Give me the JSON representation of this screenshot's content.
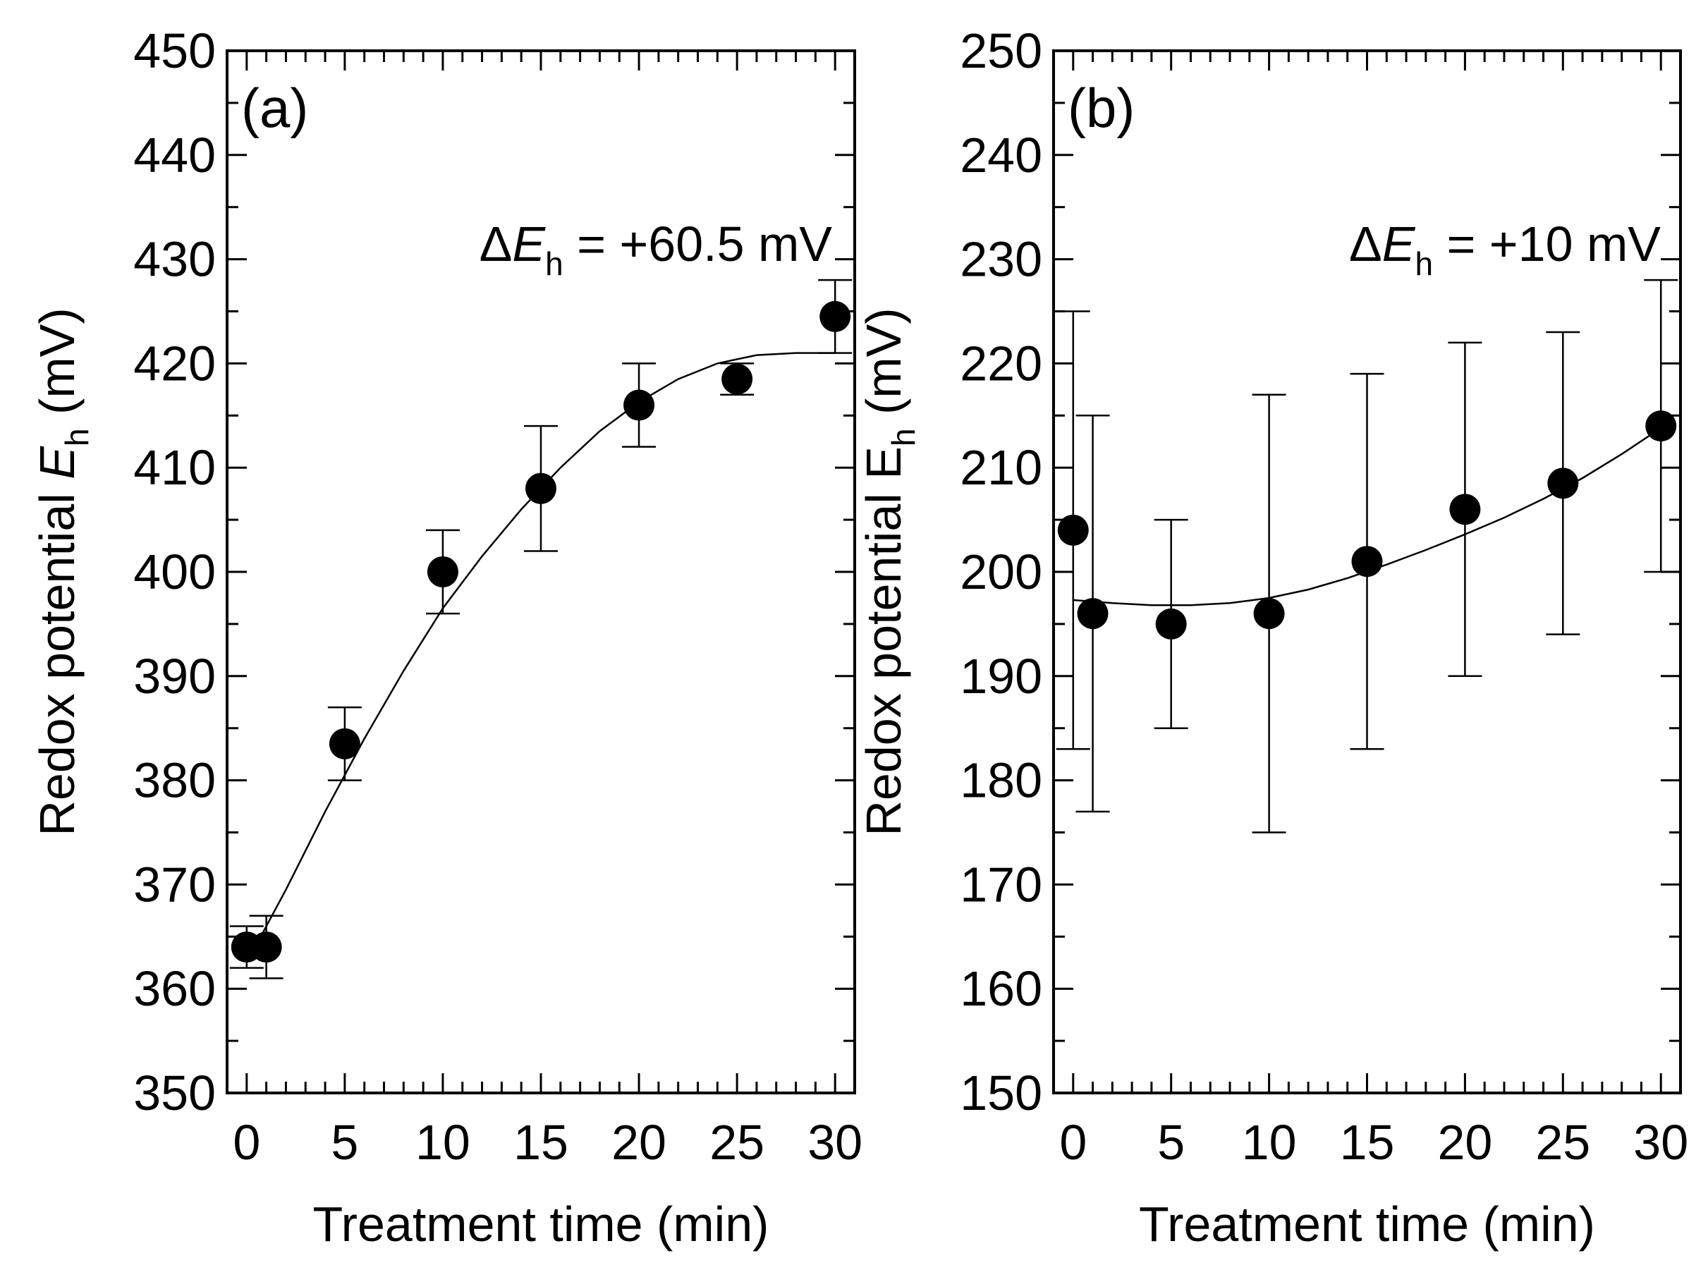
{
  "chart_data": [
    {
      "type": "scatter",
      "panel_label": "(a)",
      "xlabel": "Treatment time (min)",
      "ylabel_main": "Redox potential ",
      "ylabel_var": "E",
      "ylabel_sub": "h",
      "ylabel_unit": " (mV)",
      "ylabel_var_italic": true,
      "xlim": [
        -1,
        31
      ],
      "ylim": [
        350,
        450
      ],
      "xticks": [
        0,
        5,
        10,
        15,
        20,
        25,
        30
      ],
      "xtick_labels": [
        "0",
        "5",
        "10",
        "15",
        "20",
        "25",
        "30"
      ],
      "yticks": [
        350,
        360,
        370,
        380,
        390,
        400,
        410,
        420,
        430,
        440,
        450
      ],
      "ytick_labels": [
        "350",
        "360",
        "370",
        "380",
        "390",
        "400",
        "410",
        "420",
        "430",
        "440",
        "450"
      ],
      "annotation": {
        "delta": "Δ",
        "var": "E",
        "sub": "h",
        "value": " = +60.5 mV"
      },
      "x": [
        0,
        1,
        5,
        10,
        15,
        20,
        25,
        30
      ],
      "y": [
        364,
        364,
        383.5,
        400,
        408,
        416,
        418.5,
        424.5
      ],
      "err_low": [
        362,
        361,
        380,
        396,
        402,
        412,
        417,
        421
      ],
      "err_high": [
        366,
        367,
        387,
        404,
        414,
        420,
        420,
        428
      ],
      "fit": {
        "x": [
          0,
          2,
          4,
          6,
          8,
          10,
          12,
          14,
          16,
          18,
          20,
          22,
          24,
          26,
          28,
          30
        ],
        "y": [
          362.5,
          369.5,
          377,
          384,
          390.5,
          396.5,
          401.5,
          406,
          410,
          413.5,
          416.3,
          418.5,
          420,
          420.8,
          421,
          421
        ]
      }
    },
    {
      "type": "scatter",
      "panel_label": "(b)",
      "xlabel": "Treatment time (min)",
      "ylabel_main": "Redox potential E",
      "ylabel_var": "",
      "ylabel_sub": "h",
      "ylabel_unit": " (mV)",
      "ylabel_var_italic": false,
      "xlim": [
        -1,
        31
      ],
      "ylim": [
        150,
        250
      ],
      "xticks": [
        0,
        5,
        10,
        15,
        20,
        25,
        30
      ],
      "xtick_labels": [
        "0",
        "5",
        "10",
        "15",
        "20",
        "25",
        "30"
      ],
      "yticks": [
        150,
        160,
        170,
        180,
        190,
        200,
        210,
        220,
        230,
        240,
        250
      ],
      "ytick_labels": [
        "150",
        "160",
        "170",
        "180",
        "190",
        "200",
        "210",
        "220",
        "230",
        "240",
        "250"
      ],
      "annotation": {
        "delta": "Δ",
        "var": "E",
        "sub": "h",
        "value": " = +10 mV"
      },
      "x": [
        0,
        1,
        5,
        10,
        15,
        20,
        25,
        30
      ],
      "y": [
        204,
        196,
        195,
        196,
        201,
        206,
        208.5,
        214
      ],
      "err_low": [
        183,
        177,
        185,
        175,
        183,
        190,
        194,
        200
      ],
      "err_high": [
        225,
        215,
        205,
        217,
        219,
        222,
        223,
        228
      ],
      "fit": {
        "x": [
          0,
          2,
          4,
          6,
          8,
          10,
          12,
          14,
          16,
          18,
          20,
          22,
          24,
          26,
          28,
          30
        ],
        "y": [
          197.3,
          197,
          196.8,
          196.8,
          197,
          197.5,
          198.3,
          199.4,
          200.7,
          202.1,
          203.6,
          205.2,
          207,
          209,
          211.3,
          213.8
        ]
      }
    }
  ]
}
